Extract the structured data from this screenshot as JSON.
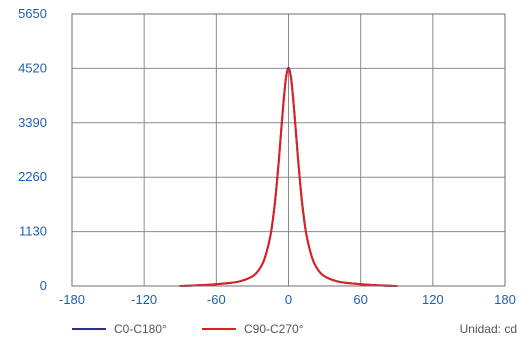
{
  "chart_data": {
    "type": "line",
    "xlim": [
      -180,
      180
    ],
    "ylim": [
      0,
      5650
    ],
    "x_ticks": [
      "-180",
      "-120",
      "-60",
      "0",
      "60",
      "120",
      "180"
    ],
    "y_ticks": [
      "5650",
      "4520",
      "3390",
      "2260",
      "1130",
      "0"
    ],
    "grid": true,
    "legend_position": "bottom",
    "unit_label": "Unidad: cd",
    "series": [
      {
        "name": "C0-C180°",
        "color": "#2a2f8f",
        "x": [
          -90,
          -70,
          -50,
          -40,
          -30,
          -25,
          -20,
          -15,
          -12,
          -10,
          -8,
          -6,
          -4,
          -2,
          0,
          2,
          4,
          6,
          8,
          10,
          12,
          15,
          20,
          25,
          30,
          40,
          50,
          70,
          90
        ],
        "y": [
          0,
          20,
          60,
          100,
          200,
          320,
          560,
          1050,
          1580,
          2050,
          2620,
          3250,
          3860,
          4340,
          4530,
          4340,
          3860,
          3250,
          2620,
          2050,
          1580,
          1050,
          560,
          320,
          200,
          100,
          60,
          20,
          0
        ]
      },
      {
        "name": "C90-C270°",
        "color": "#e02020",
        "x": [
          -90,
          -70,
          -50,
          -40,
          -30,
          -25,
          -20,
          -15,
          -12,
          -10,
          -8,
          -6,
          -4,
          -2,
          0,
          2,
          4,
          6,
          8,
          10,
          12,
          15,
          20,
          25,
          30,
          40,
          50,
          70,
          90
        ],
        "y": [
          0,
          20,
          60,
          100,
          200,
          320,
          560,
          1050,
          1580,
          2050,
          2620,
          3250,
          3860,
          4340,
          4510,
          4340,
          3860,
          3250,
          2620,
          2050,
          1580,
          1050,
          560,
          320,
          200,
          100,
          60,
          20,
          0
        ]
      }
    ]
  },
  "colors": {
    "tick_label": "#1f5fb3",
    "grid": "#8a8a8a",
    "frame": "#6f6f6f",
    "legend_text": "#555555"
  }
}
